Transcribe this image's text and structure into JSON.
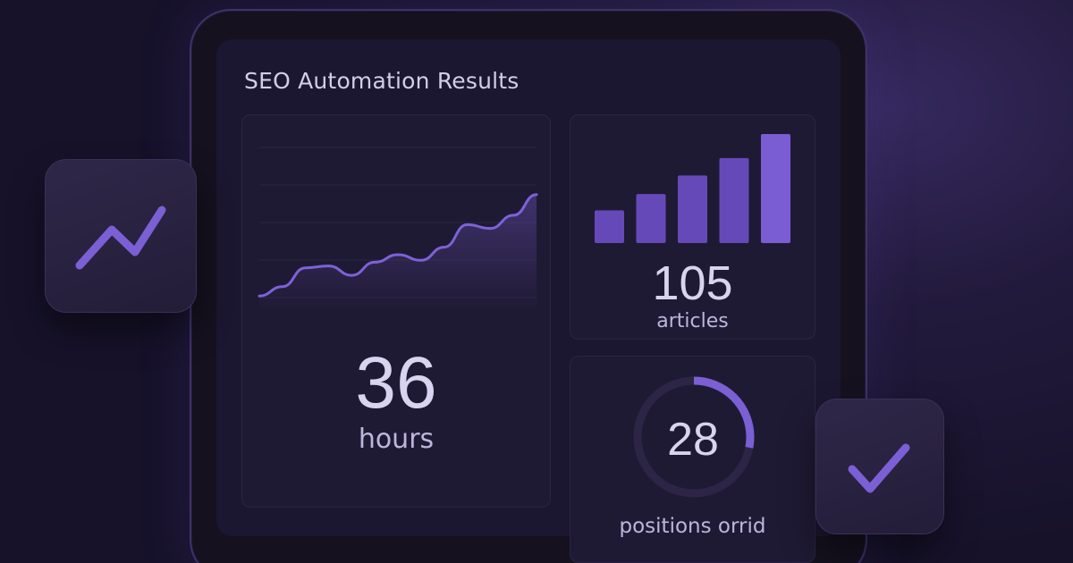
{
  "dashboard": {
    "title": "SEO Automation Results"
  },
  "metrics": {
    "hours": {
      "value": "36",
      "label": "hours"
    },
    "articles": {
      "value": "105",
      "label": "articles"
    },
    "positions": {
      "value": "28",
      "label": "positions orrid",
      "ring_fraction": 0.28
    }
  },
  "icons": {
    "left_tile": "trend-up-icon",
    "right_tile": "checkmark-icon"
  },
  "colors": {
    "accent": "#7b5fd4",
    "accent_light": "#8a6fe0",
    "text": "#d8d3ee"
  },
  "chart_data": [
    {
      "type": "area",
      "x": [
        0,
        1,
        2,
        3,
        4,
        5,
        6,
        7,
        8,
        9,
        10,
        11,
        12
      ],
      "values": [
        8,
        13,
        23,
        24,
        19,
        26,
        30,
        27,
        34,
        46,
        44,
        51,
        62
      ],
      "ylim": [
        0,
        100
      ],
      "grid": true
    },
    {
      "type": "bar",
      "values": [
        30,
        45,
        62,
        78,
        100
      ],
      "ylim": [
        0,
        100
      ],
      "grid": false
    }
  ]
}
